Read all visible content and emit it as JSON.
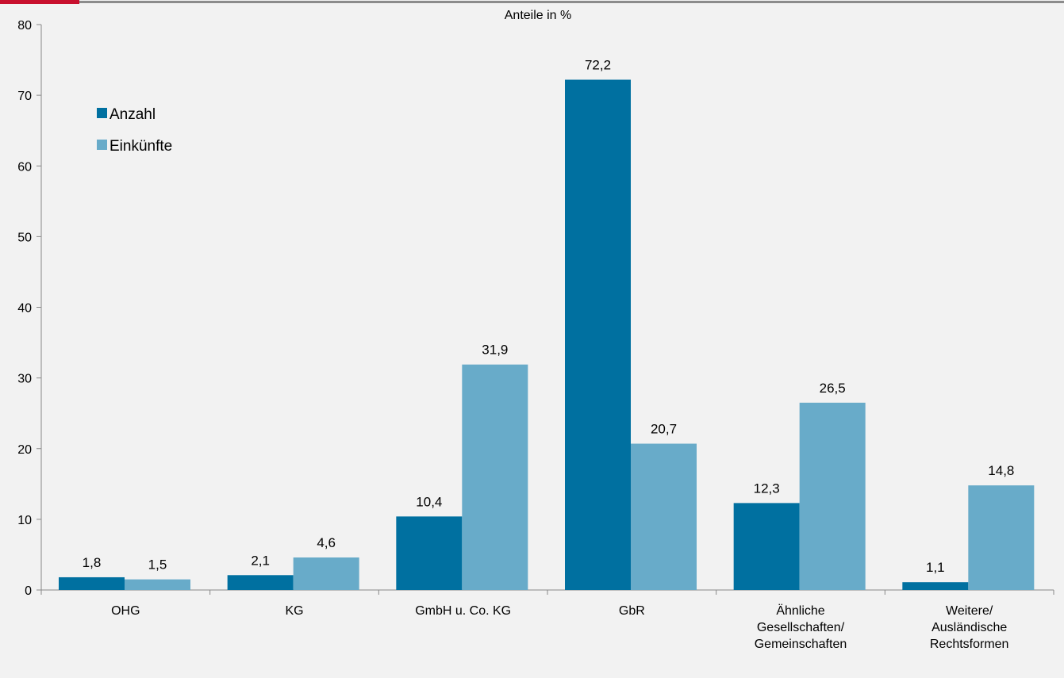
{
  "colors": {
    "accent_bar": "#c8102e",
    "top_rule": "#8c8c8c",
    "series_anzahl": "#0070a0",
    "series_einkuenfte": "#68abc9",
    "axis": "#888888",
    "background": "#f2f2f2"
  },
  "chart_data": {
    "type": "bar",
    "title": "Anteile in %",
    "xlabel": "",
    "ylabel": "",
    "ylim": [
      0,
      80
    ],
    "yticks": [
      0,
      10,
      20,
      30,
      40,
      50,
      60,
      70,
      80
    ],
    "grid": false,
    "legend_position": "top-left",
    "categories": [
      [
        "OHG"
      ],
      [
        "KG"
      ],
      [
        "GmbH u. Co. KG"
      ],
      [
        "GbR"
      ],
      [
        "Ähnliche",
        "Gesellschaften/",
        "Gemeinschaften"
      ],
      [
        "Weitere/",
        "Ausländische",
        "Rechtsformen"
      ]
    ],
    "series": [
      {
        "name": "Anzahl",
        "values": [
          1.8,
          2.1,
          10.4,
          72.2,
          12.3,
          1.1
        ],
        "labels": [
          "1,8",
          "2,1",
          "10,4",
          "72,2",
          "12,3",
          "1,1"
        ]
      },
      {
        "name": "Einkünfte",
        "values": [
          1.5,
          4.6,
          31.9,
          20.7,
          26.5,
          14.8
        ],
        "labels": [
          "1,5",
          "4,6",
          "31,9",
          "20,7",
          "26,5",
          "14,8"
        ]
      }
    ]
  }
}
